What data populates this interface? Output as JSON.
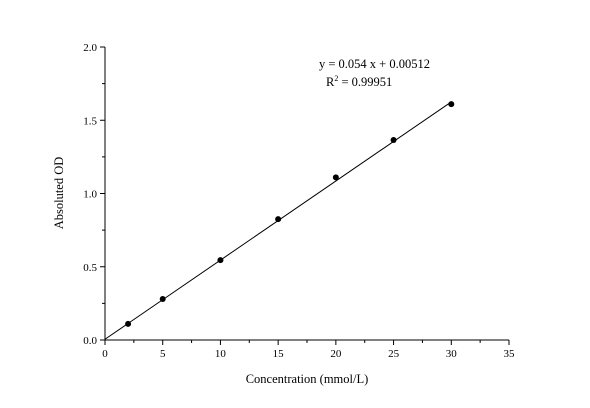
{
  "chart_data": {
    "type": "scatter",
    "title": "",
    "xlabel": "Concentration (mmol/L)",
    "ylabel": "Absoluted OD",
    "xlim": [
      0,
      35
    ],
    "ylim": [
      0,
      2.0
    ],
    "x_ticks": [
      0,
      5,
      10,
      15,
      20,
      25,
      30,
      35
    ],
    "y_ticks": [
      0.0,
      0.5,
      1.0,
      1.5,
      2.0
    ],
    "x_tick_labels": [
      "0",
      "5",
      "10",
      "15",
      "20",
      "25",
      "30",
      "35"
    ],
    "y_tick_labels": [
      "0.0",
      "0.5",
      "1.0",
      "1.5",
      "2.0"
    ],
    "grid": false,
    "series": [
      {
        "x": [
          2,
          5,
          10,
          15,
          20,
          25,
          30
        ],
        "y": [
          0.11,
          0.28,
          0.545,
          0.825,
          1.11,
          1.365,
          1.61
        ],
        "color": "#000000",
        "marker": "circle"
      }
    ],
    "fit_line": {
      "slope": 0.054,
      "intercept": 0.00512,
      "x_range": [
        0,
        30
      ],
      "color": "#000000"
    },
    "annotations": {
      "equation": "y = 0.054 x + 0.00512",
      "r2_prefix": "R",
      "r2_sup": "2",
      "r2_value": " = 0.99951"
    }
  }
}
